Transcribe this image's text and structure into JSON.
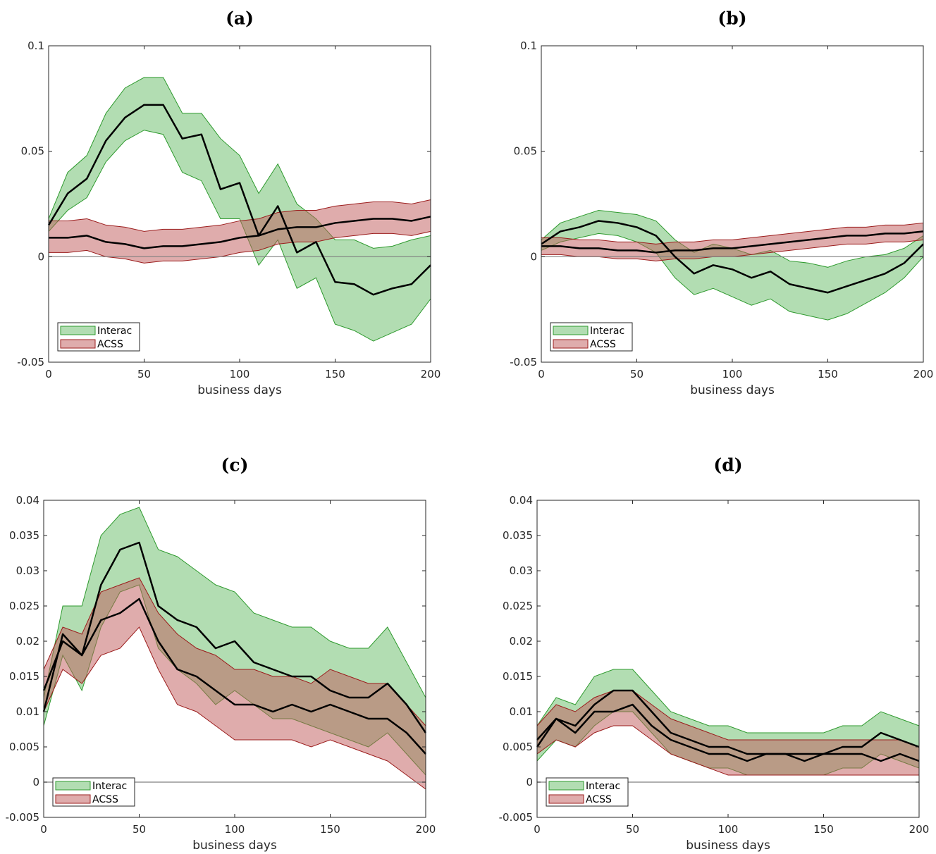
{
  "chart_data": [
    {
      "type": "area",
      "title": "(a)",
      "xlabel": "business days",
      "xlim": [
        0,
        200
      ],
      "ylim": [
        -0.05,
        0.1
      ],
      "xticks": [
        "0",
        "50",
        "100",
        "150",
        "200"
      ],
      "yticks": [
        "0.1",
        "0.05",
        "0",
        "-0.05"
      ],
      "yticks_values": [
        0.1,
        0.05,
        0,
        -0.05
      ],
      "legend_position": "bottom-left",
      "x": [
        0,
        10,
        20,
        30,
        40,
        50,
        60,
        70,
        80,
        90,
        100,
        110,
        120,
        130,
        140,
        150,
        160,
        170,
        180,
        190,
        200
      ],
      "series": [
        {
          "name": "Interac",
          "mean": [
            0.015,
            0.03,
            0.037,
            0.055,
            0.066,
            0.072,
            0.072,
            0.056,
            0.058,
            0.032,
            0.035,
            0.01,
            0.024,
            0.002,
            0.007,
            -0.012,
            -0.013,
            -0.018,
            -0.015,
            -0.013,
            -0.004
          ],
          "upper": [
            0.018,
            0.04,
            0.048,
            0.068,
            0.08,
            0.085,
            0.085,
            0.068,
            0.068,
            0.056,
            0.048,
            0.03,
            0.044,
            0.025,
            0.018,
            0.008,
            0.008,
            0.004,
            0.005,
            0.008,
            0.01
          ],
          "lower": [
            0.012,
            0.022,
            0.028,
            0.045,
            0.055,
            0.06,
            0.058,
            0.04,
            0.036,
            0.018,
            0.018,
            -0.004,
            0.008,
            -0.015,
            -0.01,
            -0.032,
            -0.035,
            -0.04,
            -0.036,
            -0.032,
            -0.02
          ]
        },
        {
          "name": "ACSS",
          "mean": [
            0.009,
            0.009,
            0.01,
            0.007,
            0.006,
            0.004,
            0.005,
            0.005,
            0.006,
            0.007,
            0.009,
            0.01,
            0.013,
            0.014,
            0.014,
            0.016,
            0.017,
            0.018,
            0.018,
            0.017,
            0.019
          ],
          "upper": [
            0.017,
            0.017,
            0.018,
            0.015,
            0.014,
            0.012,
            0.013,
            0.013,
            0.014,
            0.015,
            0.017,
            0.018,
            0.021,
            0.022,
            0.022,
            0.024,
            0.025,
            0.026,
            0.026,
            0.025,
            0.027
          ],
          "lower": [
            0.002,
            0.002,
            0.003,
            0.0,
            -0.001,
            -0.003,
            -0.002,
            -0.002,
            -0.001,
            0.0,
            0.002,
            0.003,
            0.006,
            0.007,
            0.007,
            0.009,
            0.01,
            0.011,
            0.011,
            0.01,
            0.012
          ]
        }
      ]
    },
    {
      "type": "area",
      "title": "(b)",
      "xlabel": "business days",
      "xlim": [
        0,
        200
      ],
      "ylim": [
        -0.05,
        0.1
      ],
      "xticks": [
        "0",
        "50",
        "100",
        "150",
        "200"
      ],
      "yticks": [
        "0.1",
        "0.05",
        "0",
        "-0.05"
      ],
      "yticks_values": [
        0.1,
        0.05,
        0,
        -0.05
      ],
      "legend_position": "bottom-left",
      "x": [
        0,
        10,
        20,
        30,
        40,
        50,
        60,
        70,
        80,
        90,
        100,
        110,
        120,
        130,
        140,
        150,
        160,
        170,
        180,
        190,
        200
      ],
      "series": [
        {
          "name": "Interac",
          "mean": [
            0.006,
            0.012,
            0.014,
            0.017,
            0.016,
            0.014,
            0.01,
            0.0,
            -0.008,
            -0.004,
            -0.006,
            -0.01,
            -0.007,
            -0.013,
            -0.015,
            -0.017,
            -0.014,
            -0.011,
            -0.008,
            -0.003,
            0.006
          ],
          "upper": [
            0.008,
            0.016,
            0.019,
            0.022,
            0.021,
            0.02,
            0.017,
            0.008,
            0.002,
            0.006,
            0.004,
            0.001,
            0.003,
            -0.002,
            -0.003,
            -0.005,
            -0.002,
            0.0,
            0.001,
            0.004,
            0.01
          ],
          "lower": [
            0.003,
            0.007,
            0.009,
            0.011,
            0.01,
            0.007,
            0.002,
            -0.01,
            -0.018,
            -0.015,
            -0.019,
            -0.023,
            -0.02,
            -0.026,
            -0.028,
            -0.03,
            -0.027,
            -0.022,
            -0.017,
            -0.01,
            0.0
          ]
        },
        {
          "name": "ACSS",
          "mean": [
            0.005,
            0.005,
            0.004,
            0.004,
            0.003,
            0.003,
            0.002,
            0.003,
            0.003,
            0.004,
            0.004,
            0.005,
            0.006,
            0.007,
            0.008,
            0.009,
            0.01,
            0.01,
            0.011,
            0.011,
            0.012
          ],
          "upper": [
            0.009,
            0.009,
            0.008,
            0.008,
            0.007,
            0.007,
            0.006,
            0.007,
            0.007,
            0.008,
            0.008,
            0.009,
            0.01,
            0.011,
            0.012,
            0.013,
            0.014,
            0.014,
            0.015,
            0.015,
            0.016
          ],
          "lower": [
            0.001,
            0.001,
            0.0,
            0.0,
            -0.001,
            -0.001,
            -0.002,
            -0.001,
            -0.001,
            0.0,
            0.0,
            0.001,
            0.002,
            0.003,
            0.004,
            0.005,
            0.006,
            0.006,
            0.007,
            0.007,
            0.008
          ]
        }
      ]
    },
    {
      "type": "area",
      "title": "(c)",
      "xlabel": "business days",
      "xlim": [
        0,
        200
      ],
      "ylim": [
        -0.005,
        0.04
      ],
      "xticks": [
        "0",
        "50",
        "100",
        "150",
        "200"
      ],
      "yticks": [
        "0.04",
        "0.035",
        "0.03",
        "0.025",
        "0.02",
        "0.015",
        "0.01",
        "0.005",
        "0",
        "-0.005"
      ],
      "yticks_values": [
        0.04,
        0.035,
        0.03,
        0.025,
        0.02,
        0.015,
        0.01,
        0.005,
        0,
        -0.005
      ],
      "legend_position": "bottom-left",
      "x": [
        0,
        10,
        20,
        30,
        40,
        50,
        60,
        70,
        80,
        90,
        100,
        110,
        120,
        130,
        140,
        150,
        160,
        170,
        180,
        190,
        200
      ],
      "series": [
        {
          "name": "Interac",
          "mean": [
            0.01,
            0.021,
            0.018,
            0.028,
            0.033,
            0.034,
            0.025,
            0.023,
            0.022,
            0.019,
            0.02,
            0.017,
            0.016,
            0.015,
            0.015,
            0.013,
            0.012,
            0.012,
            0.014,
            0.011,
            0.007
          ],
          "upper": [
            0.012,
            0.025,
            0.025,
            0.035,
            0.038,
            0.039,
            0.033,
            0.032,
            0.03,
            0.028,
            0.027,
            0.024,
            0.023,
            0.022,
            0.022,
            0.02,
            0.019,
            0.019,
            0.022,
            0.017,
            0.012
          ],
          "lower": [
            0.008,
            0.018,
            0.013,
            0.022,
            0.027,
            0.028,
            0.019,
            0.016,
            0.014,
            0.011,
            0.013,
            0.011,
            0.009,
            0.009,
            0.008,
            0.007,
            0.006,
            0.005,
            0.007,
            0.004,
            0.001
          ]
        },
        {
          "name": "ACSS",
          "mean": [
            0.013,
            0.02,
            0.018,
            0.023,
            0.024,
            0.026,
            0.02,
            0.016,
            0.015,
            0.013,
            0.011,
            0.011,
            0.01,
            0.011,
            0.01,
            0.011,
            0.01,
            0.009,
            0.009,
            0.007,
            0.004
          ],
          "upper": [
            0.016,
            0.022,
            0.021,
            0.027,
            0.028,
            0.029,
            0.024,
            0.021,
            0.019,
            0.018,
            0.016,
            0.016,
            0.015,
            0.015,
            0.014,
            0.016,
            0.015,
            0.014,
            0.014,
            0.011,
            0.008
          ],
          "lower": [
            0.01,
            0.016,
            0.014,
            0.018,
            0.019,
            0.022,
            0.016,
            0.011,
            0.01,
            0.008,
            0.006,
            0.006,
            0.006,
            0.006,
            0.005,
            0.006,
            0.005,
            0.004,
            0.003,
            0.001,
            -0.001
          ]
        }
      ]
    },
    {
      "type": "area",
      "title": "(d)",
      "xlabel": "business days",
      "xlim": [
        0,
        200
      ],
      "ylim": [
        -0.005,
        0.04
      ],
      "xticks": [
        "0",
        "50",
        "100",
        "150",
        "200"
      ],
      "yticks": [
        "0.04",
        "0.035",
        "0.03",
        "0.025",
        "0.02",
        "0.015",
        "0.01",
        "0.005",
        "0",
        "-0.005"
      ],
      "yticks_values": [
        0.04,
        0.035,
        0.03,
        0.025,
        0.02,
        0.015,
        0.01,
        0.005,
        0,
        -0.005
      ],
      "legend_position": "bottom-left",
      "x": [
        0,
        10,
        20,
        30,
        40,
        50,
        60,
        70,
        80,
        90,
        100,
        110,
        120,
        130,
        140,
        150,
        160,
        170,
        180,
        190,
        200
      ],
      "series": [
        {
          "name": "Interac",
          "mean": [
            0.005,
            0.009,
            0.008,
            0.011,
            0.013,
            0.013,
            0.01,
            0.007,
            0.006,
            0.005,
            0.005,
            0.004,
            0.004,
            0.004,
            0.004,
            0.004,
            0.005,
            0.005,
            0.007,
            0.006,
            0.005
          ],
          "upper": [
            0.008,
            0.012,
            0.011,
            0.015,
            0.016,
            0.016,
            0.013,
            0.01,
            0.009,
            0.008,
            0.008,
            0.007,
            0.007,
            0.007,
            0.007,
            0.007,
            0.008,
            0.008,
            0.01,
            0.009,
            0.008
          ],
          "lower": [
            0.003,
            0.006,
            0.005,
            0.008,
            0.01,
            0.01,
            0.007,
            0.004,
            0.003,
            0.002,
            0.002,
            0.001,
            0.001,
            0.001,
            0.001,
            0.001,
            0.002,
            0.002,
            0.004,
            0.003,
            0.002
          ]
        },
        {
          "name": "ACSS",
          "mean": [
            0.006,
            0.009,
            0.007,
            0.01,
            0.01,
            0.011,
            0.008,
            0.006,
            0.005,
            0.004,
            0.004,
            0.003,
            0.004,
            0.004,
            0.003,
            0.004,
            0.004,
            0.004,
            0.003,
            0.004,
            0.003
          ],
          "upper": [
            0.008,
            0.011,
            0.01,
            0.012,
            0.013,
            0.013,
            0.011,
            0.009,
            0.008,
            0.007,
            0.006,
            0.006,
            0.006,
            0.006,
            0.006,
            0.006,
            0.006,
            0.006,
            0.006,
            0.006,
            0.005
          ],
          "lower": [
            0.004,
            0.006,
            0.005,
            0.007,
            0.008,
            0.008,
            0.006,
            0.004,
            0.003,
            0.002,
            0.001,
            0.001,
            0.001,
            0.001,
            0.001,
            0.001,
            0.001,
            0.001,
            0.001,
            0.001,
            0.001
          ]
        }
      ]
    }
  ],
  "colors": {
    "Interac_fill": "#66bb66",
    "Interac_edge": "#2e9a2e",
    "ACSS_fill": "#c05a5a",
    "ACSS_edge": "#9b1c1c",
    "mean_line": "#000000",
    "zero_line": "#808080"
  }
}
